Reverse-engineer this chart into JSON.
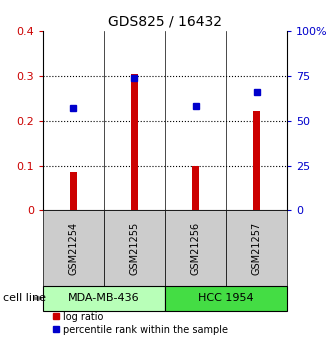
{
  "title": "GDS825 / 16432",
  "samples": [
    "GSM21254",
    "GSM21255",
    "GSM21256",
    "GSM21257"
  ],
  "log_ratio": [
    0.085,
    0.305,
    0.098,
    0.222
  ],
  "percentile_rank": [
    0.228,
    0.295,
    0.232,
    0.265
  ],
  "cell_lines": [
    {
      "label": "MDA-MB-436",
      "samples": [
        0,
        1
      ],
      "color": "#b8ffb8"
    },
    {
      "label": "HCC 1954",
      "samples": [
        2,
        3
      ],
      "color": "#44dd44"
    }
  ],
  "ylim_left": [
    0,
    0.4
  ],
  "ylim_right": [
    0,
    100
  ],
  "yticks_left": [
    0,
    0.1,
    0.2,
    0.3,
    0.4
  ],
  "yticks_right": [
    0,
    25,
    50,
    75,
    100
  ],
  "yticklabels_right": [
    "0",
    "25",
    "50",
    "75",
    "100%"
  ],
  "bar_color": "#cc0000",
  "dot_color": "#0000cc",
  "left_axis_color": "#cc0000",
  "right_axis_color": "#0000cc",
  "sample_box_color": "#cccccc",
  "cell_line_label": "cell line",
  "legend_bar_label": "log ratio",
  "legend_dot_label": "percentile rank within the sample",
  "bar_width": 0.12,
  "dot_markersize": 5
}
